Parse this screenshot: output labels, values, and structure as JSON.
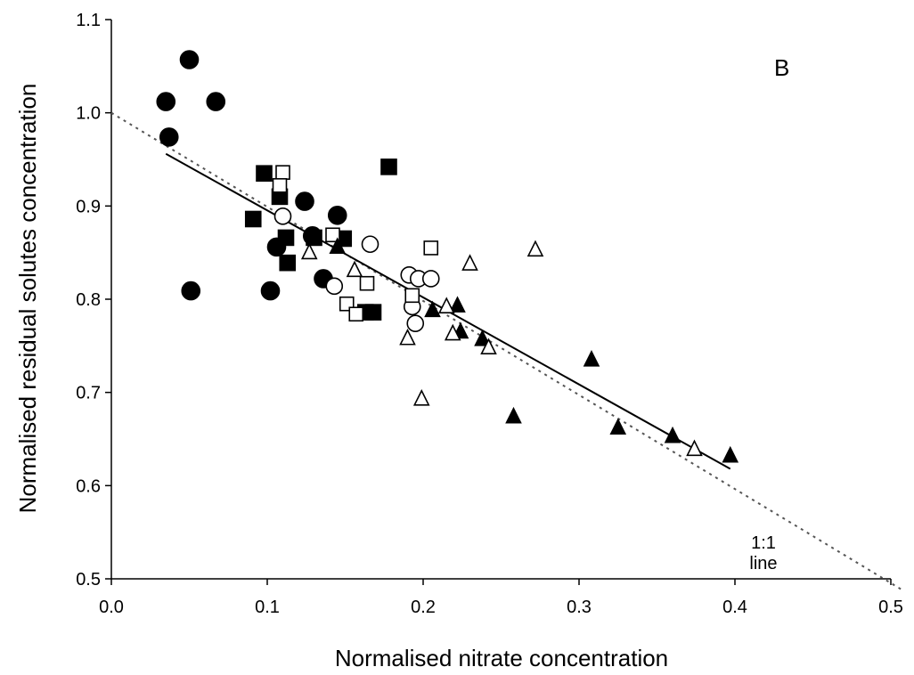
{
  "chart_data": {
    "type": "scatter",
    "xlabel": "Normalised nitrate concentration",
    "ylabel": "Normalised residual solutes concentration",
    "xlim": [
      0.0,
      0.5
    ],
    "ylim": [
      0.5,
      1.1
    ],
    "x_ticks": [
      "0.0",
      "0.1",
      "0.2",
      "0.3",
      "0.4",
      "0.5"
    ],
    "y_ticks": [
      "0.5",
      "0.6",
      "0.7",
      "0.8",
      "0.9",
      "1.0",
      "1.1"
    ],
    "x_tick_values": [
      0.0,
      0.1,
      0.2,
      0.3,
      0.4,
      0.5
    ],
    "y_tick_values": [
      0.5,
      0.6,
      0.7,
      0.8,
      0.9,
      1.0,
      1.1
    ],
    "grid": false,
    "legend": "none",
    "panel_label": "B",
    "series": [
      {
        "marker": "filled-circle",
        "color": "#000000",
        "points": [
          [
            0.035,
            1.012
          ],
          [
            0.05,
            1.057
          ],
          [
            0.067,
            1.012
          ],
          [
            0.037,
            0.974
          ],
          [
            0.051,
            0.809
          ],
          [
            0.102,
            0.809
          ],
          [
            0.106,
            0.856
          ],
          [
            0.124,
            0.905
          ],
          [
            0.129,
            0.868
          ],
          [
            0.145,
            0.89
          ],
          [
            0.136,
            0.822
          ]
        ]
      },
      {
        "marker": "open-circle",
        "color": "#000000",
        "points": [
          [
            0.11,
            0.889
          ],
          [
            0.143,
            0.814
          ],
          [
            0.166,
            0.859
          ],
          [
            0.191,
            0.826
          ],
          [
            0.197,
            0.822
          ],
          [
            0.205,
            0.822
          ],
          [
            0.193,
            0.792
          ],
          [
            0.195,
            0.774
          ]
        ]
      },
      {
        "marker": "filled-square",
        "color": "#000000",
        "points": [
          [
            0.098,
            0.935
          ],
          [
            0.108,
            0.91
          ],
          [
            0.091,
            0.886
          ],
          [
            0.112,
            0.866
          ],
          [
            0.113,
            0.839
          ],
          [
            0.13,
            0.866
          ],
          [
            0.149,
            0.865
          ],
          [
            0.178,
            0.942
          ],
          [
            0.163,
            0.786
          ],
          [
            0.168,
            0.786
          ]
        ]
      },
      {
        "marker": "open-square",
        "color": "#000000",
        "points": [
          [
            0.11,
            0.936
          ],
          [
            0.108,
            0.922
          ],
          [
            0.142,
            0.869
          ],
          [
            0.164,
            0.817
          ],
          [
            0.151,
            0.795
          ],
          [
            0.157,
            0.784
          ],
          [
            0.205,
            0.855
          ],
          [
            0.193,
            0.804
          ]
        ]
      },
      {
        "marker": "filled-triangle",
        "color": "#000000",
        "points": [
          [
            0.145,
            0.856
          ],
          [
            0.206,
            0.788
          ],
          [
            0.222,
            0.793
          ],
          [
            0.224,
            0.765
          ],
          [
            0.238,
            0.757
          ],
          [
            0.258,
            0.674
          ],
          [
            0.308,
            0.735
          ],
          [
            0.325,
            0.662
          ],
          [
            0.36,
            0.653
          ],
          [
            0.397,
            0.632
          ]
        ]
      },
      {
        "marker": "open-triangle",
        "color": "#000000",
        "points": [
          [
            0.127,
            0.85
          ],
          [
            0.156,
            0.831
          ],
          [
            0.19,
            0.758
          ],
          [
            0.199,
            0.693
          ],
          [
            0.215,
            0.792
          ],
          [
            0.219,
            0.763
          ],
          [
            0.23,
            0.838
          ],
          [
            0.242,
            0.748
          ],
          [
            0.272,
            0.853
          ],
          [
            0.374,
            0.639
          ]
        ]
      }
    ],
    "regression_line": {
      "x": [
        0.035,
        0.397
      ],
      "y": [
        0.956,
        0.618
      ],
      "style": "solid"
    },
    "reference_line": {
      "x": [
        0.0,
        0.5
      ],
      "y": [
        1.0,
        0.5
      ],
      "style": "dotted",
      "label_lines": [
        "1:1",
        "line"
      ]
    }
  }
}
